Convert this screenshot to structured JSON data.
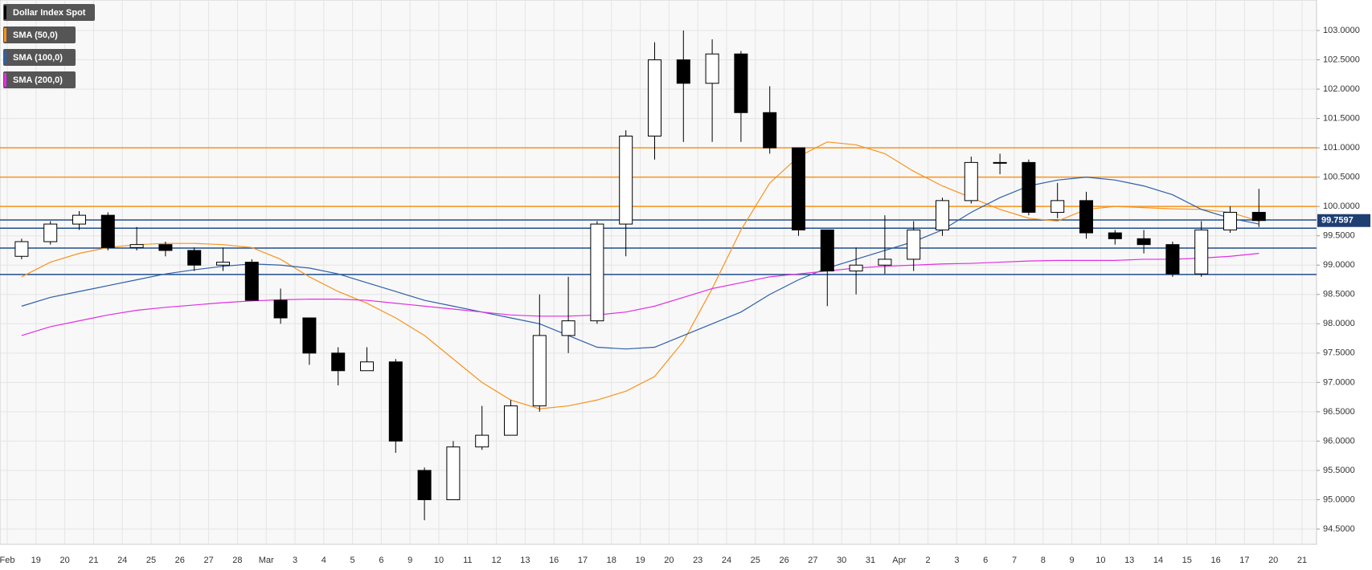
{
  "chart_data": {
    "type": "candlestick",
    "categories": [
      "Feb",
      "19",
      "20",
      "21",
      "24",
      "25",
      "26",
      "27",
      "28",
      "Mar",
      "3",
      "4",
      "5",
      "6",
      "9",
      "10",
      "11",
      "12",
      "13",
      "16",
      "17",
      "18",
      "19",
      "20",
      "23",
      "24",
      "25",
      "26",
      "27",
      "30",
      "31",
      "Apr",
      "2",
      "3",
      "6",
      "7",
      "8",
      "9",
      "10",
      "13",
      "14",
      "15",
      "16",
      "17",
      "20",
      "21"
    ],
    "ylim": [
      94.24,
      103.52
    ],
    "yticks": [
      {
        "value": 94.5,
        "label": "94.5000"
      },
      {
        "value": 95,
        "label": "95.0000"
      },
      {
        "value": 95.5,
        "label": "95.5000"
      },
      {
        "value": 96,
        "label": "96.0000"
      },
      {
        "value": 96.5,
        "label": "96.5000"
      },
      {
        "value": 97,
        "label": "97.0000"
      },
      {
        "value": 97.5,
        "label": "97.5000"
      },
      {
        "value": 98,
        "label": "98.0000"
      },
      {
        "value": 98.5,
        "label": "98.5000"
      },
      {
        "value": 99,
        "label": "99.0000"
      },
      {
        "value": 99.5,
        "label": "99.5000"
      },
      {
        "value": 100,
        "label": "100.0000"
      },
      {
        "value": 100.5,
        "label": "100.5000"
      },
      {
        "value": 101,
        "label": "101.0000"
      },
      {
        "value": 101.5,
        "label": "101.5000"
      },
      {
        "value": 102,
        "label": "102.0000"
      },
      {
        "value": 102.5,
        "label": "102.5000"
      },
      {
        "value": 103,
        "label": "103.0000"
      }
    ],
    "grid": true,
    "last_price": 99.7597,
    "series": [
      {
        "name": "Dollar Index Spot",
        "color": "#000000",
        "open": [
          99.15,
          99.4,
          99.7,
          99.85,
          99.3,
          99.35,
          99.25,
          99.0,
          99.05,
          98.4,
          98.1,
          97.5,
          97.2,
          97.35,
          95.5,
          95.0,
          95.9,
          96.1,
          96.6,
          97.8,
          98.05,
          99.7,
          101.2,
          102.5,
          102.1,
          102.6,
          101.6,
          101.0,
          99.6,
          98.9,
          99.0,
          99.1,
          99.6,
          100.1,
          100.75,
          100.75,
          99.9,
          100.1,
          99.55,
          99.45,
          99.35,
          98.85,
          99.6,
          99.9,
          null,
          null
        ],
        "high": [
          99.45,
          99.75,
          99.92,
          99.9,
          99.65,
          99.4,
          99.3,
          99.3,
          99.1,
          98.6,
          98.1,
          97.6,
          97.6,
          97.4,
          95.55,
          96.0,
          96.6,
          96.7,
          98.5,
          98.8,
          99.75,
          101.3,
          102.8,
          103.0,
          102.85,
          102.65,
          102.05,
          101.0,
          99.6,
          99.3,
          99.85,
          99.75,
          100.15,
          100.85,
          100.9,
          100.8,
          100.4,
          100.25,
          99.6,
          99.6,
          99.4,
          99.75,
          100.0,
          100.3,
          null,
          null
        ],
        "low": [
          99.1,
          99.35,
          99.6,
          99.25,
          99.25,
          99.15,
          98.9,
          98.9,
          98.4,
          98.0,
          97.3,
          96.95,
          97.2,
          95.8,
          94.65,
          95.0,
          95.85,
          96.1,
          96.5,
          97.5,
          98.0,
          99.15,
          100.8,
          101.1,
          101.1,
          101.1,
          100.9,
          99.5,
          98.3,
          98.5,
          98.85,
          98.9,
          99.5,
          100.05,
          100.55,
          99.85,
          99.8,
          99.45,
          99.35,
          99.2,
          98.8,
          98.8,
          99.55,
          99.65,
          null,
          null
        ],
        "close": [
          99.4,
          99.7,
          99.85,
          99.3,
          99.35,
          99.25,
          99.0,
          99.05,
          98.4,
          98.1,
          97.5,
          97.2,
          97.35,
          96.0,
          95.0,
          95.9,
          96.1,
          96.6,
          97.8,
          98.05,
          99.7,
          101.2,
          102.5,
          102.1,
          102.6,
          101.6,
          101.0,
          99.6,
          98.9,
          99.0,
          99.1,
          99.6,
          100.1,
          100.75,
          100.75,
          99.9,
          100.1,
          99.55,
          99.45,
          99.35,
          98.85,
          99.6,
          99.9,
          99.76,
          null,
          null
        ]
      },
      {
        "name": "SMA (50,0)",
        "color": "#f7931e",
        "values": [
          98.8,
          99.05,
          99.2,
          99.3,
          99.35,
          99.37,
          99.37,
          99.35,
          99.3,
          99.1,
          98.8,
          98.55,
          98.35,
          98.1,
          97.8,
          97.4,
          97.0,
          96.7,
          96.55,
          96.6,
          96.7,
          96.85,
          97.1,
          97.7,
          98.6,
          99.6,
          100.4,
          100.85,
          101.1,
          101.05,
          100.9,
          100.6,
          100.35,
          100.15,
          99.95,
          99.8,
          99.75,
          99.95,
          100.0,
          99.98,
          99.96,
          99.95,
          99.9,
          99.75,
          null,
          null
        ]
      },
      {
        "name": "SMA (100,0)",
        "color": "#2e5fa8",
        "values": [
          98.3,
          98.45,
          98.55,
          98.65,
          98.75,
          98.85,
          98.92,
          98.98,
          99.02,
          99.0,
          98.95,
          98.85,
          98.7,
          98.55,
          98.4,
          98.3,
          98.2,
          98.1,
          98.0,
          97.8,
          97.6,
          97.57,
          97.6,
          97.8,
          98.0,
          98.2,
          98.5,
          98.75,
          98.95,
          99.1,
          99.25,
          99.4,
          99.6,
          99.9,
          100.15,
          100.35,
          100.45,
          100.5,
          100.45,
          100.35,
          100.2,
          99.95,
          99.8,
          99.7,
          null,
          null
        ]
      },
      {
        "name": "SMA (200,0)",
        "color": "#e22ee2",
        "values": [
          97.8,
          97.95,
          98.05,
          98.15,
          98.23,
          98.28,
          98.32,
          98.36,
          98.39,
          98.41,
          98.42,
          98.42,
          98.4,
          98.35,
          98.3,
          98.25,
          98.2,
          98.15,
          98.13,
          98.13,
          98.15,
          98.2,
          98.3,
          98.45,
          98.6,
          98.7,
          98.8,
          98.85,
          98.9,
          98.95,
          98.98,
          99.0,
          99.02,
          99.03,
          99.05,
          99.07,
          99.08,
          99.08,
          99.08,
          99.1,
          99.1,
          99.12,
          99.15,
          99.2,
          null,
          null
        ]
      }
    ],
    "hlines": [
      {
        "value": 101.0,
        "color": "#f7931e"
      },
      {
        "value": 100.5,
        "color": "#f7931e"
      },
      {
        "value": 100.0,
        "color": "#f7931e"
      },
      {
        "value": 99.77,
        "color": "#1f4e8c"
      },
      {
        "value": 99.63,
        "color": "#1f4e8c"
      },
      {
        "value": 99.29,
        "color": "#1f4e8c"
      },
      {
        "value": 98.84,
        "color": "#1f4e8c"
      }
    ]
  }
}
